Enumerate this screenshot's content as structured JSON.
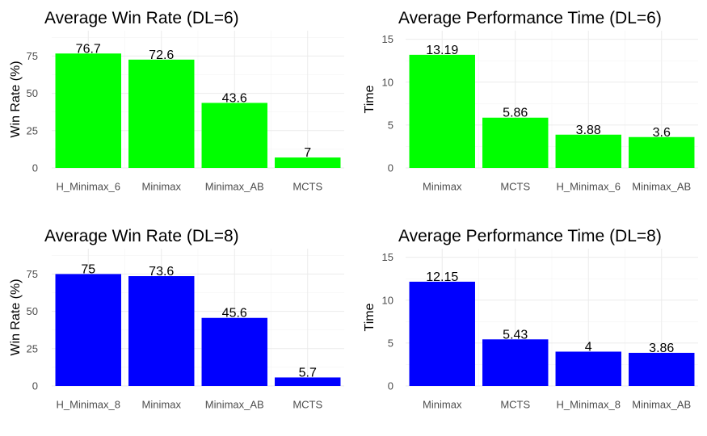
{
  "chart_data": [
    {
      "type": "bar",
      "title": "Average Win Rate (DL=6)",
      "xlabel": "",
      "ylabel": "Win Rate (%)",
      "categories": [
        "H_Minimax_6",
        "Minimax",
        "Minimax_AB",
        "MCTS"
      ],
      "values": [
        76.7,
        72.6,
        43.6,
        7
      ],
      "value_labels": [
        "76.7",
        "72.6",
        "43.6",
        "7"
      ],
      "yticks": [
        0,
        25,
        50,
        75
      ],
      "ylim": [
        0,
        92
      ],
      "color": "#00ff00",
      "grid": true
    },
    {
      "type": "bar",
      "title": "Average Performance Time (DL=6)",
      "xlabel": "",
      "ylabel": "Time",
      "categories": [
        "Minimax",
        "MCTS",
        "H_Minimax_6",
        "Minimax_AB"
      ],
      "values": [
        13.19,
        5.86,
        3.88,
        3.6
      ],
      "value_labels": [
        "13.19",
        "5.86",
        "3.88",
        "3.6"
      ],
      "yticks": [
        0,
        5,
        10,
        15
      ],
      "ylim": [
        0,
        16
      ],
      "color": "#00ff00",
      "grid": true
    },
    {
      "type": "bar",
      "title": "Average Win Rate (DL=8)",
      "xlabel": "",
      "ylabel": "Win Rate (%)",
      "categories": [
        "H_Minimax_8",
        "Minimax",
        "Minimax_AB",
        "MCTS"
      ],
      "values": [
        75,
        73.6,
        45.6,
        5.7
      ],
      "value_labels": [
        "75",
        "73.6",
        "45.6",
        "5.7"
      ],
      "yticks": [
        0,
        25,
        50,
        75
      ],
      "ylim": [
        0,
        92
      ],
      "color": "#0000ff",
      "grid": true
    },
    {
      "type": "bar",
      "title": "Average Performance Time (DL=8)",
      "xlabel": "",
      "ylabel": "Time",
      "categories": [
        "Minimax",
        "MCTS",
        "H_Minimax_8",
        "Minimax_AB"
      ],
      "values": [
        12.15,
        5.43,
        4,
        3.86
      ],
      "value_labels": [
        "12.15",
        "5.43",
        "4",
        "3.86"
      ],
      "yticks": [
        0,
        5,
        10,
        15
      ],
      "ylim": [
        0,
        16
      ],
      "color": "#0000ff",
      "grid": true
    }
  ]
}
